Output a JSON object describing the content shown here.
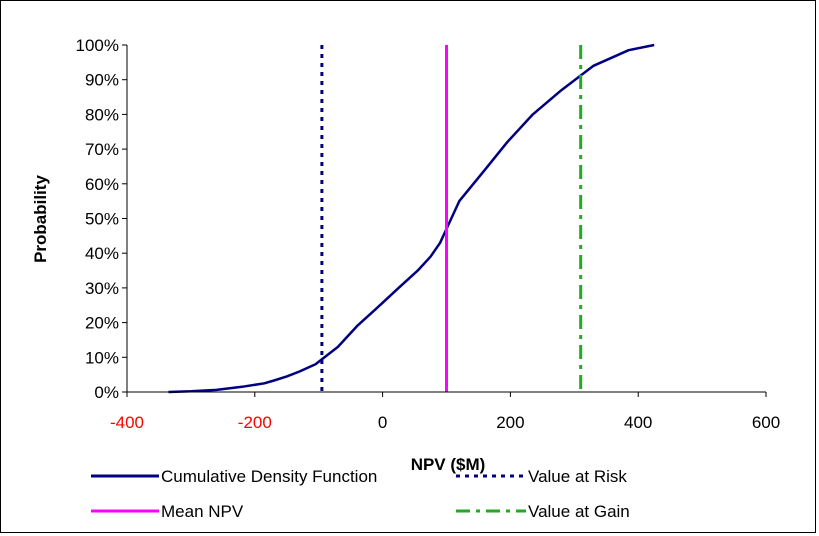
{
  "chart_data": {
    "type": "line",
    "title": "",
    "xlabel": "NPV ($M)",
    "ylabel": "Probability",
    "xlim": [
      -400,
      600
    ],
    "ylim": [
      0,
      1
    ],
    "x_ticks": [
      {
        "value": -400,
        "label": "-400",
        "color": "#ff0000"
      },
      {
        "value": -200,
        "label": "-200",
        "color": "#ff0000"
      },
      {
        "value": 0,
        "label": "0",
        "color": "#000000"
      },
      {
        "value": 200,
        "label": "200",
        "color": "#000000"
      },
      {
        "value": 400,
        "label": "400",
        "color": "#000000"
      },
      {
        "value": 600,
        "label": "600",
        "color": "#000000"
      }
    ],
    "y_ticks": [
      {
        "value": 0,
        "label": "0%"
      },
      {
        "value": 0.1,
        "label": "10%"
      },
      {
        "value": 0.2,
        "label": "20%"
      },
      {
        "value": 0.3,
        "label": "30%"
      },
      {
        "value": 0.4,
        "label": "40%"
      },
      {
        "value": 0.5,
        "label": "50%"
      },
      {
        "value": 0.6,
        "label": "60%"
      },
      {
        "value": 0.7,
        "label": "70%"
      },
      {
        "value": 0.8,
        "label": "80%"
      },
      {
        "value": 0.9,
        "label": "90%"
      },
      {
        "value": 1.0,
        "label": "100%"
      }
    ],
    "grid": false,
    "legend_position": "bottom",
    "series": [
      {
        "name": "Cumulative Density Function",
        "kind": "curve",
        "color": "#000080",
        "style": "solid",
        "x": [
          -335,
          -300,
          -260,
          -220,
          -185,
          -170,
          -150,
          -130,
          -105,
          -70,
          -40,
          -10,
          25,
          55,
          75,
          90,
          100,
          120,
          160,
          195,
          235,
          280,
          330,
          385,
          425
        ],
        "y": [
          0.0,
          0.002,
          0.006,
          0.015,
          0.025,
          0.033,
          0.045,
          0.059,
          0.08,
          0.13,
          0.19,
          0.24,
          0.3,
          0.35,
          0.39,
          0.43,
          0.47,
          0.55,
          0.64,
          0.72,
          0.8,
          0.87,
          0.94,
          0.985,
          1.0
        ]
      },
      {
        "name": "Value at Risk",
        "kind": "vline",
        "color": "#000080",
        "style": "dotted",
        "x": -95
      },
      {
        "name": "Mean NPV",
        "kind": "vline",
        "color": "#ff00ff",
        "style": "solid",
        "x": 100
      },
      {
        "name": "Value at Gain",
        "kind": "vline",
        "color": "#22aa22",
        "style": "dashdot",
        "x": 310
      }
    ]
  }
}
